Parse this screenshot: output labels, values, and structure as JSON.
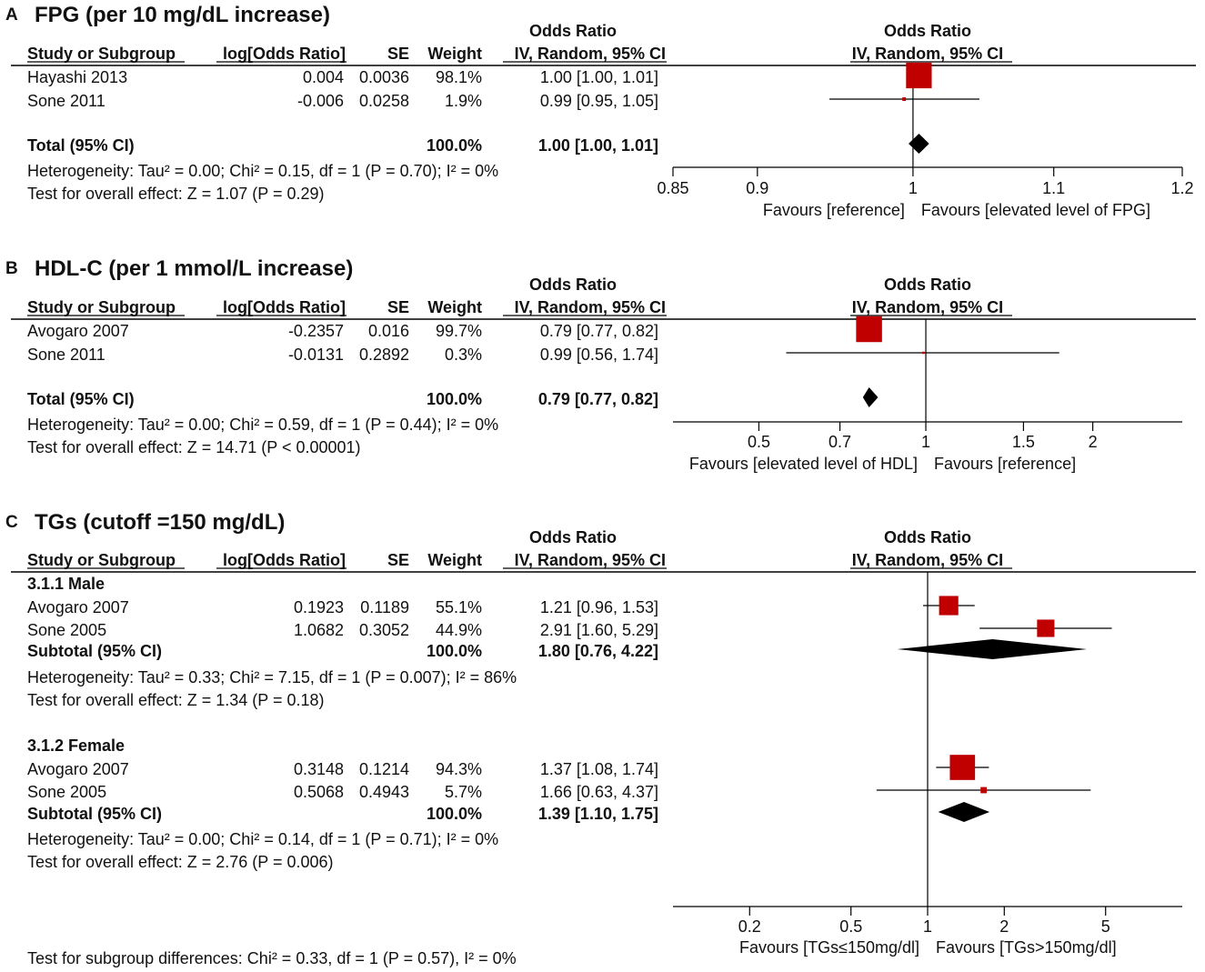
{
  "colors": {
    "box": "#c00000",
    "diamond": "#000000",
    "text": "#111111"
  },
  "table_header": {
    "odds_ratio": "Odds Ratio",
    "study": "Study or Subgroup",
    "log_or": "log[Odds Ratio]",
    "se": "SE",
    "weight": "Weight",
    "method": "IV, Random, 95% CI"
  },
  "chart_data": [
    {
      "type": "forest",
      "panel_letter": "A",
      "title": "FPG (per 10 mg/dL increase)",
      "scale": "log",
      "xlim": [
        0.85,
        1.2
      ],
      "ticks": [
        "0.85",
        "0.9",
        "1",
        "1.1",
        "1.2"
      ],
      "null_value": 1,
      "favours_left": "Favours [reference]",
      "favours_right": "Favours [elevated level of FPG]",
      "groups": [
        {
          "label": "",
          "studies": [
            {
              "name": "Hayashi 2013",
              "log_or": "0.004",
              "se": "0.0036",
              "weight": "98.1%",
              "ci_text": "1.00 [1.00, 1.01]",
              "or": 1.004,
              "lo": 0.997,
              "hi": 1.011,
              "w": 98.1
            },
            {
              "name": "Sone 2011",
              "log_or": "-0.006",
              "se": "0.0258",
              "weight": "1.9%",
              "ci_text": "0.99 [0.95, 1.05]",
              "or": 0.994,
              "lo": 0.945,
              "hi": 1.046,
              "w": 1.9
            }
          ],
          "total": {
            "label": "Total (95% CI)",
            "weight": "100.0%",
            "ci_text": "1.00 [1.00, 1.01]",
            "or": 1.004,
            "lo": 0.997,
            "hi": 1.011
          },
          "heterogeneity": "Heterogeneity: Tau² = 0.00; Chi² = 0.15, df = 1 (P = 0.70); I² = 0%",
          "overall_effect": "Test for overall effect: Z = 1.07 (P = 0.29)"
        }
      ],
      "subgroup_test": ""
    },
    {
      "type": "forest",
      "panel_letter": "B",
      "title": "HDL-C (per 1 mmol/L increase)",
      "scale": "log",
      "xlim": [
        0.35,
        2.9
      ],
      "ticks": [
        "0.5",
        "0.7",
        "1",
        "1.5",
        "2"
      ],
      "null_value": 1,
      "favours_left": "Favours [elevated level of HDL]",
      "favours_right": "Favours [reference]",
      "groups": [
        {
          "label": "",
          "studies": [
            {
              "name": "Avogaro 2007",
              "log_or": "-0.2357",
              "se": "0.016",
              "weight": "99.7%",
              "ci_text": "0.79 [0.77, 0.82]",
              "or": 0.79,
              "lo": 0.77,
              "hi": 0.82,
              "w": 99.7
            },
            {
              "name": "Sone 2011",
              "log_or": "-0.0131",
              "se": "0.2892",
              "weight": "0.3%",
              "ci_text": "0.99 [0.56, 1.74]",
              "or": 0.99,
              "lo": 0.56,
              "hi": 1.74,
              "w": 0.3
            }
          ],
          "total": {
            "label": "Total (95% CI)",
            "weight": "100.0%",
            "ci_text": "0.79 [0.77, 0.82]",
            "or": 0.79,
            "lo": 0.77,
            "hi": 0.82
          },
          "heterogeneity": "Heterogeneity: Tau² = 0.00; Chi² = 0.59, df = 1 (P = 0.44); I² = 0%",
          "overall_effect": "Test for overall effect: Z = 14.71 (P < 0.00001)"
        }
      ],
      "subgroup_test": ""
    },
    {
      "type": "forest",
      "panel_letter": "C",
      "title": "TGs (cutoff =150 mg/dL)",
      "scale": "log",
      "xlim": [
        0.1,
        10
      ],
      "ticks": [
        "0.2",
        "0.5",
        "1",
        "2",
        "5"
      ],
      "null_value": 1,
      "favours_left": "Favours [TGs≤150mg/dl]",
      "favours_right": "Favours [TGs>150mg/dl]",
      "groups": [
        {
          "label": "3.1.1 Male",
          "studies": [
            {
              "name": "Avogaro 2007",
              "log_or": "0.1923",
              "se": "0.1189",
              "weight": "55.1%",
              "ci_text": "1.21 [0.96, 1.53]",
              "or": 1.21,
              "lo": 0.96,
              "hi": 1.53,
              "w": 55.1
            },
            {
              "name": "Sone 2005",
              "log_or": "1.0682",
              "se": "0.3052",
              "weight": "44.9%",
              "ci_text": "2.91 [1.60, 5.29]",
              "or": 2.91,
              "lo": 1.6,
              "hi": 5.29,
              "w": 44.9
            }
          ],
          "total": {
            "label": "Subtotal (95% CI)",
            "weight": "100.0%",
            "ci_text": "1.80 [0.76, 4.22]",
            "or": 1.8,
            "lo": 0.76,
            "hi": 4.22
          },
          "heterogeneity": "Heterogeneity: Tau² = 0.33; Chi² = 7.15, df = 1 (P = 0.007); I² = 86%",
          "overall_effect": "Test for overall effect: Z = 1.34 (P = 0.18)"
        },
        {
          "label": "3.1.2 Female",
          "studies": [
            {
              "name": "Avogaro 2007",
              "log_or": "0.3148",
              "se": "0.1214",
              "weight": "94.3%",
              "ci_text": "1.37 [1.08, 1.74]",
              "or": 1.37,
              "lo": 1.08,
              "hi": 1.74,
              "w": 94.3
            },
            {
              "name": "Sone 2005",
              "log_or": "0.5068",
              "se": "0.4943",
              "weight": "5.7%",
              "ci_text": "1.66 [0.63, 4.37]",
              "or": 1.66,
              "lo": 0.63,
              "hi": 4.37,
              "w": 5.7
            }
          ],
          "total": {
            "label": "Subtotal (95% CI)",
            "weight": "100.0%",
            "ci_text": "1.39 [1.10, 1.75]",
            "or": 1.39,
            "lo": 1.1,
            "hi": 1.75
          },
          "heterogeneity": "Heterogeneity: Tau² = 0.00; Chi² = 0.14, df = 1 (P = 0.71); I² = 0%",
          "overall_effect": "Test for overall effect: Z = 2.76 (P = 0.006)"
        }
      ],
      "subgroup_test": "Test for subgroup differences: Chi² = 0.33, df = 1 (P = 0.57), I² = 0%"
    }
  ]
}
